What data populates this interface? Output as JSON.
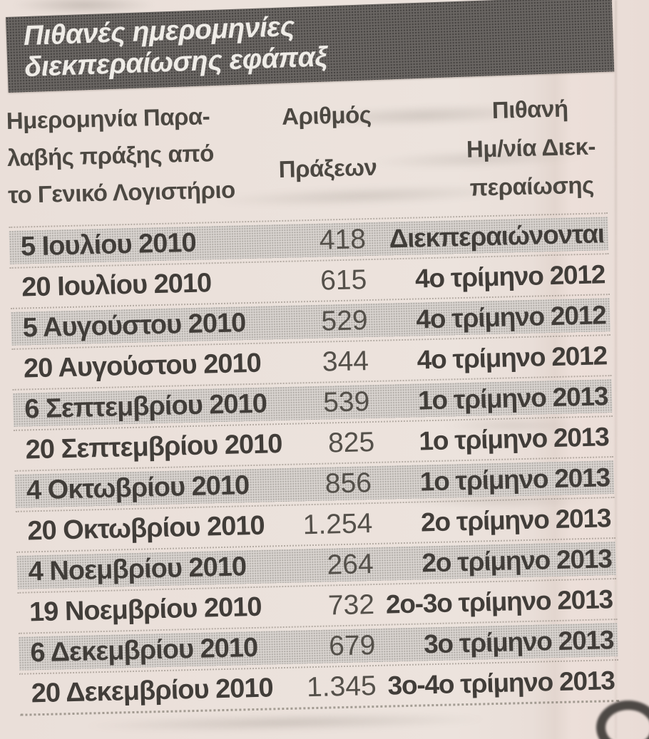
{
  "title": {
    "text": "Πιθανές ημερομηνίες\nδιεκπεραίωσης εφάπαξ"
  },
  "table": {
    "headers": {
      "col1": "Ημερομηνία Παρα-\nλαβής πράξης από\nτο Γενικό Λογιστήριο",
      "col2": "Αριθμός\nΠράξεων",
      "col3": "Πιθανή\nΗμ/νία Διεκ-\nπεραίωσης"
    },
    "rows": [
      {
        "date": "5 Ιουλίου 2010",
        "count": "418",
        "quarter": "Διεκπεραιώνονται"
      },
      {
        "date": "20 Ιουλίου 2010",
        "count": "615",
        "quarter": "4ο τρίμηνο 2012"
      },
      {
        "date": "5 Αυγούστου 2010",
        "count": "529",
        "quarter": "4ο τρίμηνο 2012"
      },
      {
        "date": "20 Αυγούστου 2010",
        "count": "344",
        "quarter": "4ο τρίμηνο 2012"
      },
      {
        "date": "6 Σεπτεμβρίου 2010",
        "count": "539",
        "quarter": "1ο τρίμηνο 2013"
      },
      {
        "date": "20 Σεπτεμβρίου 2010",
        "count": "825",
        "quarter": "1ο τρίμηνο 2013"
      },
      {
        "date": "4 Οκτωβρίου 2010",
        "count": "856",
        "quarter": "1ο τρίμηνο 2013"
      },
      {
        "date": "20 Οκτωβρίου 2010",
        "count": "1.254",
        "quarter": "2ο τρίμηνο 2013"
      },
      {
        "date": "4 Νοεμβρίου 2010",
        "count": "264",
        "quarter": "2ο τρίμηνο 2013"
      },
      {
        "date": "19 Νοεμβρίου 2010",
        "count": "732",
        "quarter": "2ο-3ο τρίμηνο 2013"
      },
      {
        "date": "6 Δεκεμβρίου 2010",
        "count": "679",
        "quarter": "3ο τρίμηνο 2013"
      },
      {
        "date": "20 Δεκεμβρίου 2010",
        "count": "1.345",
        "quarter": "3ο-4ο τρίμηνο 2013"
      }
    ]
  },
  "colors": {
    "paper": "#ebe1db",
    "banner": "#6a6663",
    "banner_text": "#efece7",
    "row_shade": "#d9d4d0",
    "text": "#413d39"
  },
  "chart_data": {
    "type": "table",
    "title": "Πιθανές ημερομηνίες διεκπεραίωσης εφάπαξ",
    "columns": [
      "Ημερομηνία Παραλαβής πράξης από το Γενικό Λογιστήριο",
      "Αριθμός Πράξεων",
      "Πιθανή Ημ/νία Διεκπεραίωσης"
    ],
    "rows": [
      [
        "5 Ιουλίου 2010",
        418,
        "Διεκπεραιώνονται"
      ],
      [
        "20 Ιουλίου 2010",
        615,
        "4ο τρίμηνο 2012"
      ],
      [
        "5 Αυγούστου 2010",
        529,
        "4ο τρίμηνο 2012"
      ],
      [
        "20 Αυγούστου 2010",
        344,
        "4ο τρίμηνο 2012"
      ],
      [
        "6 Σεπτεμβρίου 2010",
        539,
        "1ο τρίμηνο 2013"
      ],
      [
        "20 Σεπτεμβρίου 2010",
        825,
        "1ο τρίμηνο 2013"
      ],
      [
        "4 Οκτωβρίου 2010",
        856,
        "1ο τρίμηνο 2013"
      ],
      [
        "20 Οκτωβρίου 2010",
        1254,
        "2ο τρίμηνο 2013"
      ],
      [
        "4 Νοεμβρίου 2010",
        264,
        "2ο τρίμηνο 2013"
      ],
      [
        "19 Νοεμβρίου 2010",
        732,
        "2ο-3ο τρίμηνο 2013"
      ],
      [
        "6 Δεκεμβρίου 2010",
        679,
        "3ο τρίμηνο 2013"
      ],
      [
        "20 Δεκεμβρίου 2010",
        1345,
        "3ο-4ο τρίμηνο 2013"
      ]
    ]
  }
}
